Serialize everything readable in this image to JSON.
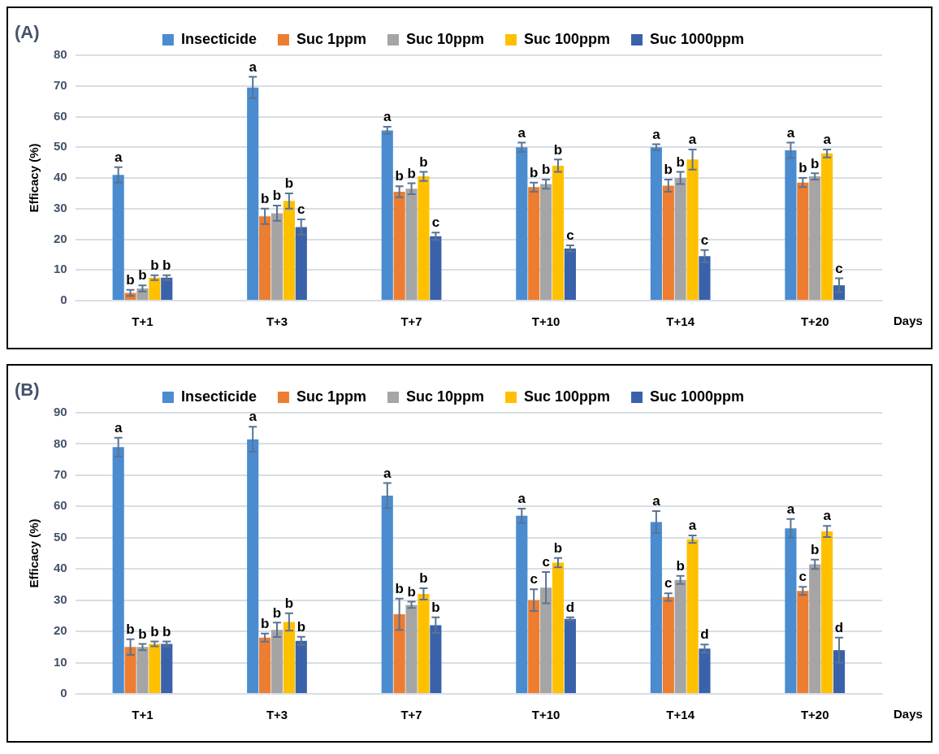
{
  "chart_data": [
    {
      "type": "bar",
      "title": "(A)",
      "xlabel": "Days",
      "ylabel": "Efficacy (%)",
      "categories": [
        "T+1",
        "T+3",
        "T+7",
        "T+10",
        "T+14",
        "T+20"
      ],
      "ylim": [
        0,
        80
      ],
      "yticks": [
        0,
        10,
        20,
        30,
        40,
        50,
        60,
        70,
        80
      ],
      "grid": "y",
      "legend": "top",
      "series": [
        {
          "name": "Insecticide",
          "color": "#4a8ccf",
          "values": [
            41,
            69.5,
            55.5,
            50,
            50,
            49
          ],
          "errors": [
            2.5,
            3.5,
            1.2,
            1.5,
            1,
            2.5
          ],
          "value_labels": [
            "a",
            "a",
            "a",
            "a",
            "a",
            "a"
          ]
        },
        {
          "name": "Suc 1ppm",
          "color": "#ed7d31",
          "values": [
            2.5,
            27.5,
            35.5,
            37,
            37.5,
            38.5
          ],
          "errors": [
            1,
            2.5,
            1.8,
            1.5,
            2,
            1.5
          ],
          "value_labels": [
            "b",
            "b",
            "b",
            "b",
            "b",
            "b"
          ]
        },
        {
          "name": "Suc 10ppm",
          "color": "#a5a5a5",
          "values": [
            4,
            28.5,
            36.5,
            38,
            40,
            40.5
          ],
          "errors": [
            1,
            2.5,
            1.8,
            1.5,
            2,
            1
          ],
          "value_labels": [
            "b",
            "b",
            "b",
            "b",
            "b",
            "b"
          ]
        },
        {
          "name": "Suc 100ppm",
          "color": "#ffc000",
          "values": [
            7.5,
            32.5,
            40.5,
            44,
            46,
            48
          ],
          "errors": [
            0.8,
            2.5,
            1.5,
            2,
            3.3,
            1.3
          ],
          "value_labels": [
            "b",
            "b",
            "b",
            "b",
            "a",
            "a"
          ]
        },
        {
          "name": "Suc 1000ppm",
          "color": "#3a62ab",
          "values": [
            7.5,
            24,
            21,
            17,
            14.5,
            5
          ],
          "errors": [
            0.8,
            2.5,
            1.2,
            1,
            2,
            2.3
          ],
          "value_labels": [
            "b",
            "c",
            "c",
            "c",
            "c",
            "c"
          ]
        }
      ]
    },
    {
      "type": "bar",
      "title": "(B)",
      "xlabel": "Days",
      "ylabel": "Efficacy (%)",
      "categories": [
        "T+1",
        "T+3",
        "T+7",
        "T+10",
        "T+14",
        "T+20"
      ],
      "ylim": [
        0,
        90
      ],
      "yticks": [
        0,
        10,
        20,
        30,
        40,
        50,
        60,
        70,
        80,
        90
      ],
      "grid": "y",
      "legend": "top",
      "series": [
        {
          "name": "Insecticide",
          "color": "#4a8ccf",
          "values": [
            79,
            81.5,
            63.5,
            57,
            55,
            53
          ],
          "errors": [
            3,
            4,
            4,
            2.3,
            3.5,
            3
          ],
          "value_labels": [
            "a",
            "a",
            "a",
            "a",
            "a",
            "a"
          ]
        },
        {
          "name": "Suc 1ppm",
          "color": "#ed7d31",
          "values": [
            15,
            18,
            25.5,
            30,
            31,
            33
          ],
          "errors": [
            2.5,
            1.3,
            5,
            3.5,
            1.2,
            1.3
          ],
          "value_labels": [
            "b",
            "b",
            "b",
            "c",
            "c",
            "c"
          ]
        },
        {
          "name": "Suc 10ppm",
          "color": "#a5a5a5",
          "values": [
            15,
            20.5,
            28.5,
            34,
            36.5,
            41.5
          ],
          "errors": [
            1,
            2.3,
            1,
            5,
            1.3,
            1.5
          ],
          "value_labels": [
            "b",
            "b",
            "b",
            "c",
            "b",
            "b"
          ]
        },
        {
          "name": "Suc 100ppm",
          "color": "#ffc000",
          "values": [
            16,
            23,
            32,
            42,
            49.5,
            52
          ],
          "errors": [
            0.8,
            2.8,
            1.8,
            1.5,
            1.2,
            1.8
          ],
          "value_labels": [
            "b",
            "b",
            "b",
            "b",
            "a",
            "a"
          ]
        },
        {
          "name": "Suc 1000ppm",
          "color": "#3a62ab",
          "values": [
            16,
            17,
            22,
            24,
            14.5,
            14
          ],
          "errors": [
            0.8,
            1.3,
            2.5,
            0.5,
            1.3,
            4
          ],
          "value_labels": [
            "b",
            "b",
            "b",
            "d",
            "d",
            "d"
          ]
        }
      ]
    }
  ]
}
